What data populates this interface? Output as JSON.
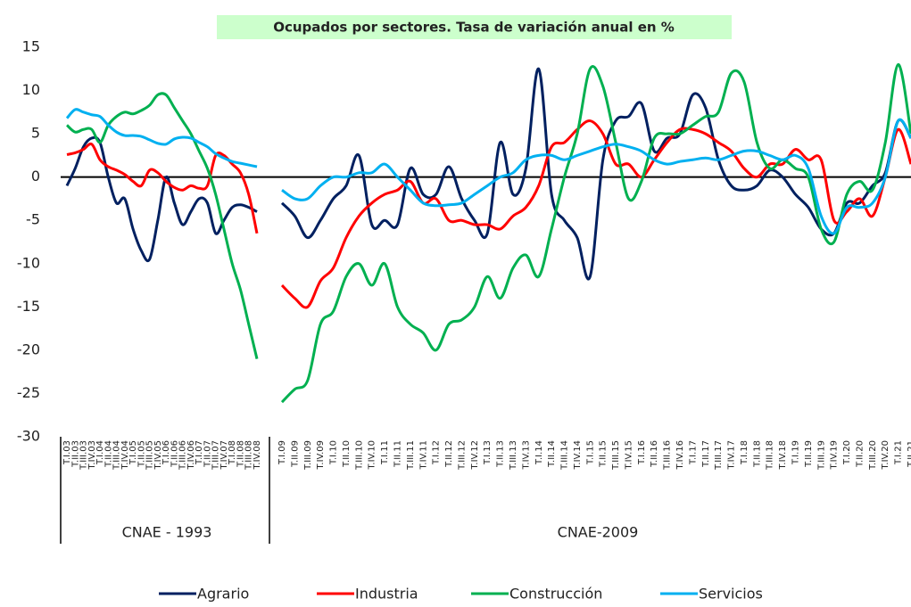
{
  "chart_data": {
    "type": "line",
    "title": "Ocupados por sectores. Tasa de variación anual en %",
    "ylim": [
      -30,
      15
    ],
    "yticks": [
      15,
      10,
      5,
      0,
      -5,
      -10,
      -15,
      -20,
      -25,
      -30
    ],
    "series": [
      {
        "name": "Agrario",
        "color": "#002060"
      },
      {
        "name": "Industria",
        "color": "#ff0000"
      },
      {
        "name": "Construcción",
        "color": "#00b050"
      },
      {
        "name": "Servicios",
        "color": "#00b0f0"
      }
    ],
    "groups": [
      {
        "label": "CNAE - 1993",
        "categories": [
          "T.I.03",
          "T.II.03",
          "T.III.03",
          "T.IV.03",
          "T.I.04",
          "T.II.04",
          "T.III.04",
          "T.IV.04",
          "T.I.05",
          "T.II.05",
          "T.III.05",
          "T.IV.05",
          "T.I.06",
          "T.II.06",
          "T.III.06",
          "T.IV.06",
          "T.I.07",
          "T.II.07",
          "T.III.07",
          "T.IV.07",
          "T.I.08",
          "T.II.08",
          "T.III.08",
          "T.IV.08"
        ],
        "values": [
          [
            -1,
            1,
            3.5,
            4.5,
            4,
            0,
            -3,
            -2.5,
            -6,
            -8.5,
            -9.5,
            -5,
            0,
            -3,
            -5.5,
            -4,
            -2.5,
            -3,
            -6.5,
            -5,
            -3.5,
            -3.2,
            -3.5,
            -4
          ],
          [
            2.6,
            2.8,
            3.2,
            3.8,
            2,
            1.2,
            0.8,
            0.3,
            -0.5,
            -1,
            0.8,
            0.5,
            -0.5,
            -1.2,
            -1.5,
            -1,
            -1.3,
            -1,
            2.5,
            2.5,
            1.5,
            0.5,
            -2,
            -6.5
          ],
          [
            6,
            5.2,
            5.5,
            5.5,
            4,
            6,
            7,
            7.5,
            7.3,
            7.7,
            8.3,
            9.5,
            9.5,
            8,
            6.5,
            5,
            3,
            1,
            -2,
            -6,
            -10,
            -13,
            -17,
            -21
          ],
          [
            6.8,
            7.8,
            7.5,
            7.2,
            7,
            6,
            5.2,
            4.8,
            4.8,
            4.7,
            4.3,
            3.9,
            3.8,
            4.4,
            4.6,
            4.5,
            4,
            3.5,
            2.7,
            2.2,
            1.8,
            1.6,
            1.4,
            1.2
          ]
        ]
      },
      {
        "label": "CNAE-2009",
        "categories": [
          "T.I.09",
          "T.II.09",
          "T.III.09",
          "T.IV.09",
          "T.I.10",
          "T.II.10",
          "T.III.10",
          "T.IV.10",
          "T.I.11",
          "T.II.11",
          "T.III.11",
          "T.IV.11",
          "T.I.12",
          "T.II.12",
          "T.III.12",
          "T.IV.12",
          "T.I.13",
          "T.II.13",
          "T.III.13",
          "T.IV.13",
          "T.I.14",
          "T.II.14",
          "T.III.14",
          "T.IV.14",
          "T.I.15",
          "T.II.15",
          "T.III.15",
          "T.IV.15",
          "T.I.16",
          "T.II.16",
          "T.III.16",
          "T.IV.16",
          "T.I.17",
          "T.II.17",
          "T.III.17",
          "T.IV.17",
          "T.I.18",
          "T.II.18",
          "T.III.18",
          "T.IV.18",
          "T.I.19",
          "T.II.19",
          "T.III.19",
          "T.IV.19",
          "T.I.20",
          "T.II.20",
          "T.III.20",
          "T.IV.20",
          "T.I.21",
          "T.II.21"
        ],
        "values": [
          [
            -3,
            -4.5,
            -7,
            -5,
            -2.5,
            -1,
            2.5,
            -5.5,
            -5,
            -5.5,
            1,
            -2,
            -2,
            1.2,
            -2.5,
            -5,
            -6.5,
            4,
            -2,
            1,
            12.5,
            -2,
            -5,
            -7,
            -11.5,
            2,
            6.5,
            7,
            8.5,
            3,
            4.5,
            5,
            9.5,
            8,
            2,
            -1,
            -1.5,
            -1,
            0.8,
            0,
            -2,
            -3.5,
            -6,
            -6.5,
            -3,
            -3,
            -1,
            0.5,
            6.5,
            4.5
          ],
          [
            -12.5,
            -14,
            -15,
            -12,
            -10.5,
            -7,
            -4.5,
            -3,
            -2,
            -1.5,
            -0.5,
            -3,
            -2.5,
            -5,
            -5,
            -5.5,
            -5.5,
            -6,
            -4.5,
            -3.5,
            -1,
            3.5,
            4,
            5.5,
            6.5,
            5,
            1.5,
            1.5,
            0,
            2,
            4,
            5.5,
            5.5,
            5,
            4,
            3,
            1,
            0,
            1.5,
            1.5,
            3.2,
            2,
            2,
            -5,
            -4,
            -2.5,
            -4.5,
            0,
            5.5,
            1.5
          ],
          [
            -26,
            -24.5,
            -23.5,
            -17,
            -15.5,
            -11.5,
            -10,
            -12.5,
            -10,
            -15,
            -17,
            -18,
            -20,
            -17,
            -16.5,
            -15,
            -11.5,
            -14,
            -10.5,
            -9,
            -11.5,
            -6,
            0,
            5,
            12.5,
            10.5,
            4,
            -2.5,
            -0.5,
            4.5,
            5,
            5,
            6,
            7,
            7.5,
            12,
            11,
            4,
            1,
            2,
            1,
            0,
            -6,
            -7.5,
            -2,
            -0.5,
            -1.5,
            4,
            13,
            5
          ],
          [
            -1.5,
            -2.5,
            -2.5,
            -1,
            0,
            0,
            0.5,
            0.5,
            1.5,
            0,
            -1.5,
            -3,
            -3.3,
            -3.2,
            -3,
            -2,
            -1,
            0,
            0.5,
            2,
            2.5,
            2.5,
            2,
            2.5,
            3,
            3.5,
            3.8,
            3.5,
            3,
            2,
            1.5,
            1.8,
            2,
            2.2,
            2,
            2.5,
            3,
            3,
            2.5,
            2,
            2.5,
            1,
            -4.5,
            -6.5,
            -3.5,
            -3.5,
            -3,
            0,
            6.5,
            4.5
          ]
        ]
      }
    ]
  }
}
